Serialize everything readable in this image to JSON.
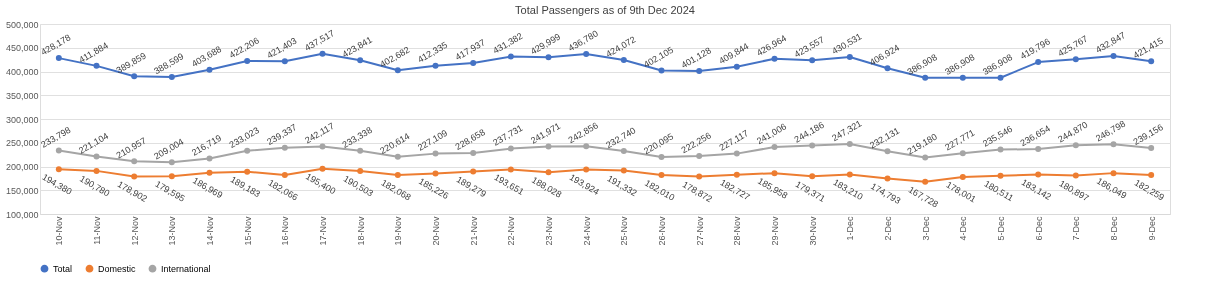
{
  "chart_data": {
    "type": "line",
    "title": "Total Passengers as of 9th Dec 2024",
    "categories": [
      "10-Nov",
      "11-Nov",
      "12-Nov",
      "13-Nov",
      "14-Nov",
      "15-Nov",
      "16-Nov",
      "17-Nov",
      "18-Nov",
      "19-Nov",
      "20-Nov",
      "21-Nov",
      "22-Nov",
      "23-Nov",
      "24-Nov",
      "25-Nov",
      "26-Nov",
      "27-Nov",
      "28-Nov",
      "29-Nov",
      "30-Nov",
      "1-Dec",
      "2-Dec",
      "3-Dec",
      "4-Dec",
      "5-Dec",
      "6-Dec",
      "7-Dec",
      "8-Dec",
      "9-Dec"
    ],
    "series": [
      {
        "name": "Total",
        "color": "#4472c4",
        "values": [
          428178,
          411884,
          389859,
          388599,
          403688,
          422206,
          421403,
          437517,
          423841,
          402682,
          412335,
          417937,
          431382,
          429999,
          436780,
          424072,
          402105,
          401128,
          409844,
          426964,
          423557,
          430531,
          406924,
          386908,
          386908,
          386908,
          419796,
          425767,
          432847,
          421415
        ],
        "value_labels": [
          "428,178",
          "411,884",
          "389,859",
          "388,599",
          "403,688",
          "422,206",
          "421,403",
          "437,517",
          "423,841",
          "402,682",
          "412,335",
          "417,937",
          "431,382",
          "429,999",
          "436,780",
          "424,072",
          "402,105",
          "401,128",
          "409,844",
          "426,964",
          "423,557",
          "430,531",
          "406,924",
          "386,908",
          "386,908",
          "386,908",
          "419,796",
          "425,767",
          "432,847",
          "421,415"
        ]
      },
      {
        "name": "Domestic",
        "color": "#ed7d31",
        "values": [
          194380,
          190780,
          178902,
          179595,
          186969,
          189183,
          182066,
          195400,
          190503,
          182068,
          185226,
          189279,
          193651,
          188028,
          193924,
          191332,
          182010,
          178872,
          182727,
          185958,
          179371,
          183210,
          174793,
          167728,
          178001,
          180511,
          183142,
          180897,
          186049,
          182259
        ],
        "value_labels": [
          "194,380",
          "190,780",
          "178,902",
          "179,595",
          "186,969",
          "189,183",
          "182,066",
          "195,400",
          "190,503",
          "182,068",
          "185,226",
          "189,279",
          "193,651",
          "188,028",
          "193,924",
          "191,332",
          "182,010",
          "178,872",
          "182,727",
          "185,958",
          "179,371",
          "183,210",
          "174,793",
          "167,728",
          "178,001",
          "180,511",
          "183,142",
          "180,897",
          "186,049",
          "182,259"
        ]
      },
      {
        "name": "International",
        "color": "#a5a5a5",
        "values": [
          233798,
          221104,
          210957,
          209004,
          216719,
          233023,
          239337,
          242117,
          233338,
          220614,
          227109,
          228658,
          237731,
          241971,
          242856,
          232740,
          220095,
          222256,
          227117,
          241006,
          244186,
          247321,
          232131,
          219180,
          227771,
          235546,
          236654,
          244870,
          246798,
          239156
        ],
        "value_labels": [
          "233,798",
          "221,104",
          "210,957",
          "209,004",
          "216,719",
          "233,023",
          "239,337",
          "242,117",
          "233,338",
          "220,614",
          "227,109",
          "228,658",
          "237,731",
          "241,971",
          "242,856",
          "232,740",
          "220,095",
          "222,256",
          "227,117",
          "241,006",
          "244,186",
          "247,321",
          "232,131",
          "219,180",
          "227,771",
          "235,546",
          "236,654",
          "244,870",
          "246,798",
          "239,156"
        ]
      }
    ],
    "ylim": [
      100000,
      500000
    ],
    "yticks": [
      {
        "value": 100000,
        "label": "100,000"
      },
      {
        "value": 150000,
        "label": "150,000"
      },
      {
        "value": 200000,
        "label": "200,000"
      },
      {
        "value": 250000,
        "label": "250,000"
      },
      {
        "value": 300000,
        "label": "300,000"
      },
      {
        "value": 350000,
        "label": "350,000"
      },
      {
        "value": 400000,
        "label": "400,000"
      },
      {
        "value": 450000,
        "label": "450,000"
      },
      {
        "value": 500000,
        "label": "500,000"
      }
    ],
    "grid": "y",
    "legend": "bottom",
    "marker": "circle",
    "line_style": "solid"
  }
}
